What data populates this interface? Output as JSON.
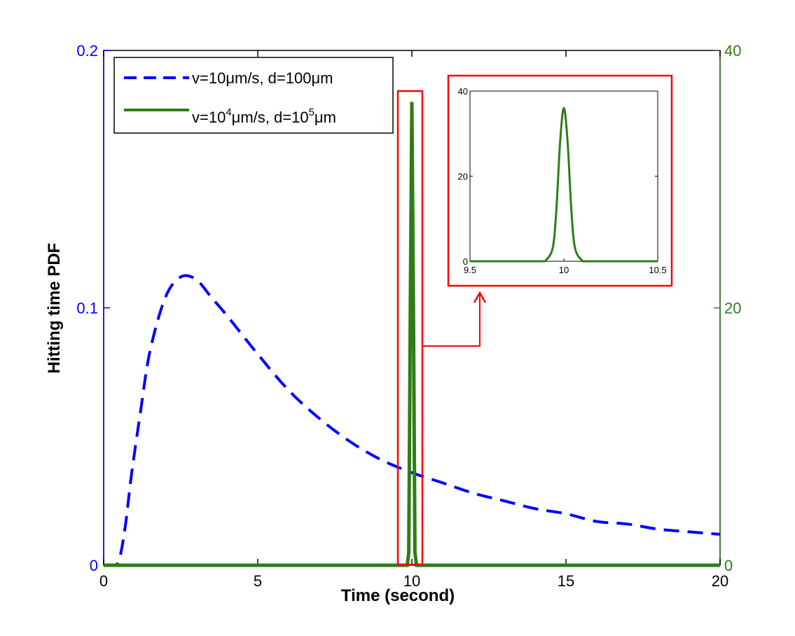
{
  "chart_data": {
    "type": "line",
    "xlabel": "Time (second)",
    "ylabel": "Hitting time PDF",
    "xlim": [
      0,
      20
    ],
    "ylim_left": [
      0,
      0.2
    ],
    "ylim_right": [
      0,
      40
    ],
    "x_ticks": [
      "0",
      "5",
      "10",
      "15",
      "20"
    ],
    "y_ticks_left": [
      "0",
      "0.1",
      "0.2"
    ],
    "y_ticks_right": [
      "0",
      "20",
      "40"
    ],
    "grid": false,
    "legend_position": "top-left",
    "colors": {
      "left_axis": "#0000ff",
      "right_axis": "#2e7d16",
      "highlight": "#ff0000"
    },
    "series": [
      {
        "name": "v=10μm/s, d=100μm",
        "axis": "left",
        "style": "dashed",
        "color": "#0000ff",
        "x": [
          0,
          0.3,
          0.5,
          0.7,
          0.9,
          1.2,
          1.5,
          2.0,
          2.5,
          3.0,
          3.5,
          4.0,
          5.0,
          6.0,
          7.0,
          8.0,
          9.0,
          10.0,
          11.0,
          12.0,
          13.0,
          14.0,
          15.0,
          16.0,
          17.0,
          18.0,
          19.0,
          20.0
        ],
        "y": [
          0,
          0.0,
          0.002,
          0.015,
          0.035,
          0.06,
          0.083,
          0.104,
          0.112,
          0.111,
          0.104,
          0.097,
          0.082,
          0.068,
          0.057,
          0.048,
          0.041,
          0.036,
          0.032,
          0.028,
          0.025,
          0.022,
          0.02,
          0.017,
          0.016,
          0.014,
          0.013,
          0.012
        ]
      },
      {
        "name": "v=10",
        "name_suffix_sup_1": "4",
        "name_mid": "μm/s, d=10",
        "name_suffix_sup_2": "5",
        "name_end": "μm",
        "axis": "right",
        "style": "solid",
        "color": "#2e7d16",
        "x": [
          0,
          9.85,
          9.9,
          9.95,
          10.0,
          10.05,
          10.1,
          10.15,
          20
        ],
        "y": [
          0,
          0,
          1,
          20,
          36,
          20,
          1,
          0,
          0
        ]
      }
    ],
    "inset": {
      "xlim": [
        9.5,
        10.5
      ],
      "ylim": [
        0,
        40
      ],
      "x_ticks": [
        "9.5",
        "10",
        "10.5"
      ],
      "y_ticks": [
        "0",
        "20",
        "40"
      ],
      "x": [
        9.9,
        9.94,
        9.96,
        9.98,
        10.0,
        10.02,
        10.04,
        10.06,
        10.1
      ],
      "y": [
        0,
        3,
        12,
        28,
        36,
        28,
        12,
        3,
        0
      ]
    }
  }
}
